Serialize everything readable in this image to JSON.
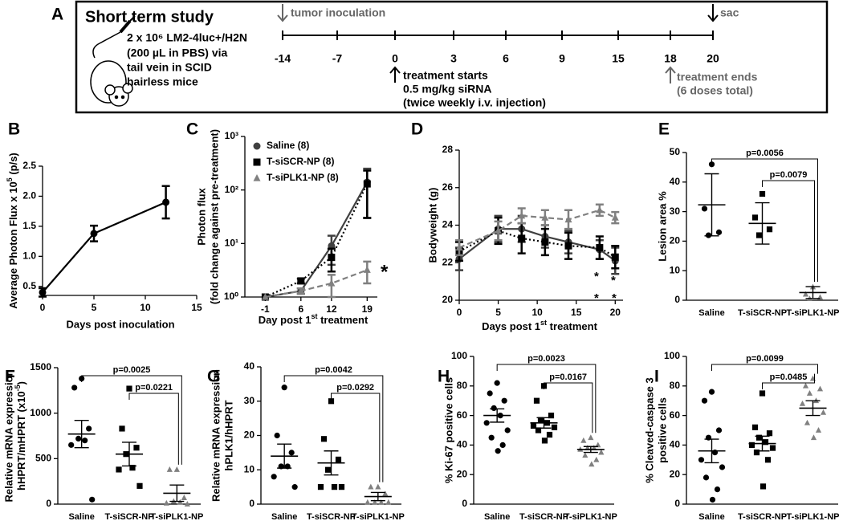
{
  "timeline": {
    "panel": "A",
    "title": "Short term study",
    "injection": [
      "2 x 10⁶ LM2-4luc+/H2N",
      "(200 µL in PBS)  via",
      "tail vein in SCID",
      "hairless mice"
    ],
    "days": [
      "-14",
      "-7",
      "0",
      "3",
      "6",
      "9",
      "15",
      "18",
      "20"
    ],
    "inoculation": "tumor inoculation",
    "sac": "sac",
    "treatment_start": [
      "treatment starts",
      "0.5 mg/kg siRNA",
      "(twice weekly i.v. injection)"
    ],
    "treatment_end": [
      "treatment ends",
      "(6 doses total)"
    ]
  },
  "chart_data": [
    {
      "type": "line",
      "panel": "B",
      "ylabel": {
        "text": "Average Photon Flux x 10",
        "sup": "5",
        "rest": " (p/s)"
      },
      "xlabel": "Days post inoculation",
      "x": [
        0,
        5,
        12
      ],
      "series": [
        {
          "color": "#000000",
          "marker": "circle",
          "line_style": "solid",
          "values": [
            0.4,
            1.38,
            1.9
          ],
          "errors": [
            0.07,
            0.13,
            0.27
          ]
        }
      ],
      "xlim": [
        0,
        15
      ],
      "xticks": [
        0,
        5,
        10,
        15
      ],
      "ylim": [
        0.35,
        2.5
      ],
      "yticks": [
        0.5,
        {
          "value": 1,
          "label": "1.0"
        },
        1.5,
        {
          "value": 2,
          "label": "2.0"
        },
        2.5
      ]
    },
    {
      "type": "line",
      "panel": "C",
      "log_y": true,
      "legend": "upper left",
      "ylabel": [
        "Photon flux",
        "(fold change against pre-treatment)"
      ],
      "xlabel": {
        "text": "Day post 1",
        "sup": "st",
        "rest": " treatment"
      },
      "x": [
        -1,
        6,
        12,
        19
      ],
      "series": [
        {
          "name": "Saline (8)",
          "color": "#404040",
          "marker": "circle",
          "line_style": "solid",
          "values": [
            1,
            1.3,
            9,
            140
          ],
          "errors": [
            0,
            0.15,
            5,
            110
          ]
        },
        {
          "name": "T-siSCR-NP (8)",
          "color": "#000000",
          "marker": "square",
          "line_style": "dotted",
          "values": [
            1,
            2,
            5.5,
            130
          ],
          "errors": [
            0,
            0.2,
            2.5,
            100
          ]
        },
        {
          "name": "T-siPLK1-NP (8)",
          "color": "#808080",
          "marker": "triangle",
          "line_style": "dashed",
          "values": [
            1,
            1.3,
            1.8,
            3.2
          ],
          "errors": [
            0,
            0.15,
            0.8,
            1.4
          ]
        }
      ],
      "annotations": [
        "*"
      ],
      "xlim": [
        -5,
        21
      ],
      "xticks": [
        -1,
        6,
        12,
        19
      ],
      "ylim": [
        1,
        1000
      ],
      "yticks": [
        {
          "value": 1,
          "label": "10⁰"
        },
        {
          "value": 10,
          "label": "10¹"
        },
        {
          "value": 100,
          "label": "10²"
        },
        {
          "value": 1000,
          "label": "10³"
        }
      ]
    },
    {
      "type": "line",
      "panel": "D",
      "ylabel": "Bodyweight (g)",
      "xlabel": {
        "text": "Days post 1",
        "sup": "st",
        "rest": " treatment"
      },
      "x": [
        0,
        5,
        8,
        11,
        14,
        18,
        20
      ],
      "series": [
        {
          "color": "#404040",
          "marker": "circle",
          "line_style": "solid",
          "values": [
            22.2,
            23.8,
            23.8,
            23.4,
            23.1,
            22.7,
            22.1
          ],
          "errors": [
            0.6,
            0.7,
            0.7,
            0.6,
            0.6,
            0.5,
            0.7
          ]
        },
        {
          "color": "#000000",
          "marker": "square",
          "line_style": "dotted",
          "values": [
            22.6,
            23.7,
            23.3,
            23.1,
            22.9,
            22.8,
            22.3
          ],
          "errors": [
            0.5,
            0.7,
            0.8,
            0.7,
            0.7,
            0.6,
            0.6
          ]
        },
        {
          "color": "#808080",
          "marker": "triangle",
          "line_style": "dashed",
          "values": [
            22.8,
            23.7,
            24.5,
            24.4,
            24.3,
            24.8,
            24.4
          ],
          "errors": [
            0.4,
            0.5,
            0.4,
            0.4,
            0.5,
            0.3,
            0.3
          ]
        }
      ],
      "annotations": [
        "*",
        "*",
        "*",
        "*"
      ],
      "xlim": [
        0,
        21
      ],
      "xticks": [
        0,
        5,
        10,
        15,
        20
      ],
      "ylim": [
        20,
        28
      ],
      "yticks": [
        20,
        22,
        24,
        26,
        28
      ]
    },
    {
      "type": "dot",
      "panel": "E",
      "ylabel": "Lesion area %",
      "groups": [
        {
          "name": "Saline",
          "color": "#000000",
          "marker": "circle",
          "values": [
            46,
            31,
            23,
            22
          ],
          "mean": 32.3,
          "error": 10.5
        },
        {
          "name": "T-siSCR-NP",
          "color": "#000000",
          "marker": "square",
          "values": [
            36,
            28,
            24,
            22
          ],
          "mean": 26,
          "error": 7
        },
        {
          "name": "T-siPLK1-NP",
          "color": "#808080",
          "marker": "triangle",
          "values": [
            4.5,
            2,
            1,
            0.5
          ],
          "mean": 2.6,
          "error": 2
        }
      ],
      "p_values": [
        "p=0.0056",
        "p=0.0079"
      ],
      "ylim": [
        0,
        50
      ],
      "yticks": [
        0,
        10,
        20,
        30,
        40,
        50
      ]
    },
    {
      "type": "dot",
      "panel": "F",
      "ylabel": [
        "Relative mRNA expression",
        {
          "text": "hHPRT/mHPRT (x10",
          "sup": "-5",
          "rest": ")"
        }
      ],
      "groups": [
        {
          "name": "Saline",
          "color": "#000000",
          "marker": "circle",
          "values": [
            1380,
            1280,
            830,
            720,
            700,
            650,
            50
          ],
          "mean": 770,
          "error": 150
        },
        {
          "name": "T-siSCR-NP",
          "color": "#000000",
          "marker": "square",
          "values": [
            1270,
            830,
            620,
            550,
            400,
            380,
            200
          ],
          "mean": 550,
          "error": 130
        },
        {
          "name": "T-siPLK1-NP",
          "color": "#808080",
          "marker": "triangle",
          "values": [
            380,
            380,
            70,
            30,
            20,
            10,
            0
          ],
          "mean": 120,
          "error": 90
        }
      ],
      "p_values": [
        "p=0.0025",
        "p=0.0221"
      ],
      "ylim": [
        0,
        1500
      ],
      "yticks": [
        0,
        500,
        1000,
        1500
      ]
    },
    {
      "type": "dot",
      "panel": "G",
      "ylabel": [
        "Relative mRNA expression",
        "hPLK1/hHPRT"
      ],
      "groups": [
        {
          "name": "Saline",
          "color": "#000000",
          "marker": "circle",
          "values": [
            34,
            20,
            15,
            11,
            11,
            8,
            5
          ],
          "mean": 14,
          "error": 3.5
        },
        {
          "name": "T-siSCR-NP",
          "color": "#000000",
          "marker": "square",
          "values": [
            30,
            19,
            13,
            10,
            5,
            5,
            5
          ],
          "mean": 12,
          "error": 3.5
        },
        {
          "name": "T-siPLK1-NP",
          "color": "#808080",
          "marker": "triangle",
          "values": [
            5,
            5,
            3,
            0.5,
            0.5,
            0.5,
            0.5
          ],
          "mean": 2.2,
          "error": 1.2
        }
      ],
      "p_values": [
        "p=0.0042",
        "p=0.0292"
      ],
      "ylim": [
        0,
        40
      ],
      "yticks": [
        0,
        10,
        20,
        30,
        40
      ]
    },
    {
      "type": "dot",
      "panel": "H",
      "ylabel": "% Ki-67 positive cells",
      "groups": [
        {
          "name": "Saline",
          "color": "#000000",
          "marker": "circle",
          "values": [
            82,
            75,
            70,
            65,
            60,
            55,
            50,
            45,
            40,
            36
          ],
          "mean": 60,
          "error": 4.5
        },
        {
          "name": "T-siSCR-NP",
          "color": "#000000",
          "marker": "square",
          "values": [
            80,
            70,
            60,
            57,
            55,
            53,
            52,
            50,
            47,
            43
          ],
          "mean": 55,
          "error": 3.5
        },
        {
          "name": "T-siPLK1-NP",
          "color": "#808080",
          "marker": "triangle",
          "values": [
            45,
            43,
            40,
            38,
            38,
            37,
            35,
            33,
            30,
            27
          ],
          "mean": 37,
          "error": 2
        }
      ],
      "p_values": [
        "p=0.0023",
        "p=0.0167"
      ],
      "ylim": [
        0,
        100
      ],
      "yticks": [
        0,
        20,
        40,
        60,
        80,
        100
      ]
    },
    {
      "type": "dot",
      "panel": "I",
      "ylabel": [
        "% Cleaved-caspase 3",
        "positive cells"
      ],
      "groups": [
        {
          "name": "Saline",
          "color": "#000000",
          "marker": "circle",
          "values": [
            76,
            70,
            50,
            45,
            35,
            30,
            25,
            18,
            10,
            3
          ],
          "mean": 36,
          "error": 8
        },
        {
          "name": "T-siSCR-NP",
          "color": "#000000",
          "marker": "square",
          "values": [
            75,
            52,
            48,
            45,
            42,
            40,
            38,
            35,
            30,
            12
          ],
          "mean": 41,
          "error": 5
        },
        {
          "name": "T-siPLK1-NP",
          "color": "#808080",
          "marker": "triangle",
          "values": [
            85,
            80,
            78,
            75,
            70,
            68,
            62,
            55,
            50,
            45
          ],
          "mean": 65,
          "error": 5
        }
      ],
      "p_values": [
        "p=0.0099",
        "p=0.0485"
      ],
      "ylim": [
        0,
        100
      ],
      "yticks": [
        0,
        20,
        40,
        60,
        80,
        100
      ]
    }
  ]
}
